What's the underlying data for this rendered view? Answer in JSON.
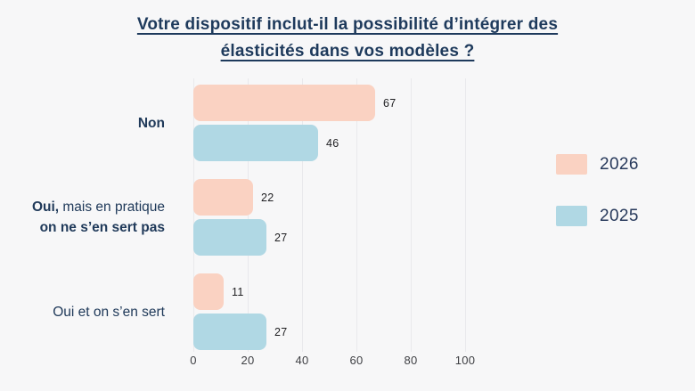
{
  "background": "#f7f7f8",
  "title": {
    "full": "Votre dispositif inclut-il la possibilité d’intégrer des élasticités dans vos modèles ?",
    "lines": [
      "Votre dispositif inclut-il la possibilité d’intégrer des",
      "élasticités dans vos modèles ?"
    ],
    "color": "#1e3a5c"
  },
  "chart_data": {
    "type": "bar",
    "orientation": "horizontal",
    "title": "Votre dispositif inclut-il la possibilité d’intégrer des élasticités dans vos modèles ?",
    "categories": [
      "Non",
      "Oui, mais en pratique on ne s’en sert pas",
      "Oui et on s’en sert"
    ],
    "categories_rich": [
      [
        [
          {
            "t": "Non",
            "b": true
          }
        ]
      ],
      [
        [
          {
            "t": "Oui,",
            "b": true
          },
          {
            "t": " mais en pratique",
            "b": false
          }
        ],
        [
          {
            "t": "on ne s’en sert pas",
            "b": true
          }
        ]
      ],
      [
        [
          {
            "t": "Oui et on s’en sert",
            "b": false
          }
        ]
      ]
    ],
    "series": [
      {
        "name": "2026",
        "color": "#fad2c2",
        "values": [
          67,
          22,
          11
        ]
      },
      {
        "name": "2025",
        "color": "#b0d8e4",
        "values": [
          46,
          27,
          27
        ]
      }
    ],
    "xlim": [
      0,
      100
    ],
    "x_ticks": [
      0,
      20,
      40,
      60,
      80,
      100
    ],
    "grid": true,
    "bar_value_labels": true,
    "legend_position": "right"
  },
  "legend": {
    "items": [
      {
        "label": "2026",
        "color": "#fad2c2"
      },
      {
        "label": "2025",
        "color": "#b0d8e4"
      }
    ]
  },
  "axis": {
    "tick_color": "#3f4044",
    "gridline_color": "#e9e9ec"
  }
}
